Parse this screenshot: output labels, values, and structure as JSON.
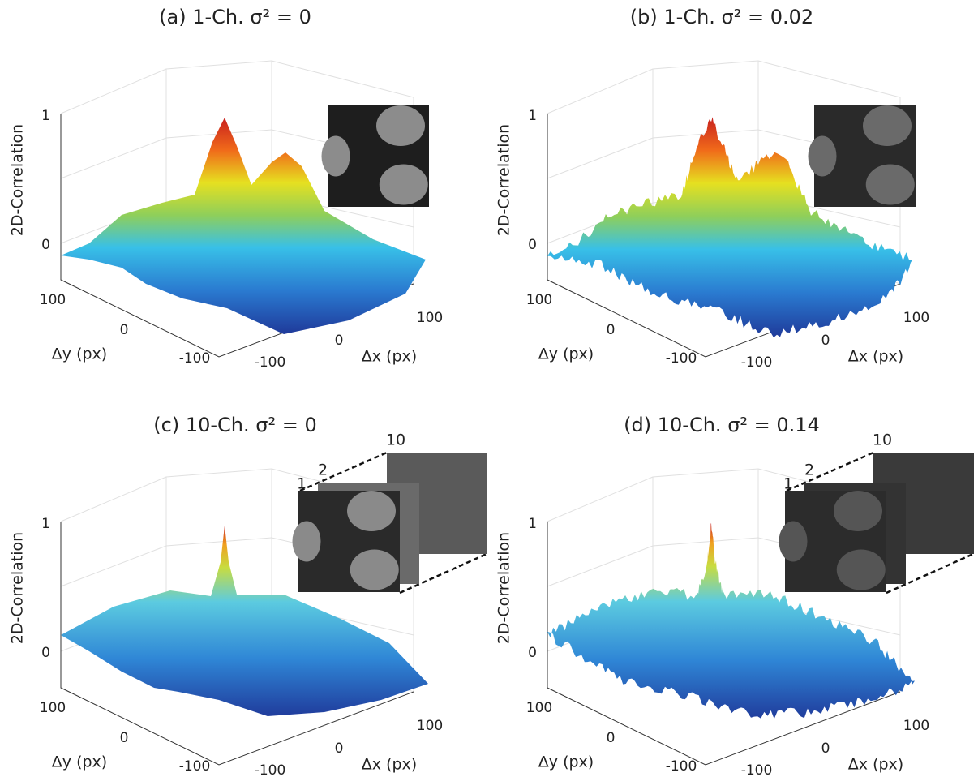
{
  "panels": [
    {
      "title": "(a) 1-Ch. σ² = 0",
      "z_label": "2D-Correlation",
      "y_label": "Δy (px)",
      "x_label": "Δx (px)",
      "zticks": [
        0,
        1
      ],
      "yticks": [
        100,
        0,
        -100
      ],
      "xticks": [
        -100,
        0,
        100
      ]
    },
    {
      "title": "(b) 1-Ch. σ² = 0.02",
      "z_label": "2D-Correlation",
      "y_label": "Δy (px)",
      "x_label": "Δx (px)",
      "zticks": [
        0,
        1
      ],
      "yticks": [
        100,
        0,
        -100
      ],
      "xticks": [
        -100,
        0,
        100
      ]
    },
    {
      "title": "(c) 10-Ch. σ² = 0",
      "z_label": "2D-Correlation",
      "y_label": "Δy (px)",
      "x_label": "Δx (px)",
      "zticks": [
        0,
        1
      ],
      "yticks": [
        100,
        0,
        -100
      ],
      "xticks": [
        -100,
        0,
        100
      ],
      "inset_labels": [
        "1",
        "2",
        "10"
      ]
    },
    {
      "title": "(d) 10-Ch. σ² = 0.14",
      "z_label": "2D-Correlation",
      "y_label": "Δy (px)",
      "x_label": "Δx (px)",
      "zticks": [
        0,
        1
      ],
      "yticks": [
        100,
        0,
        -100
      ],
      "xticks": [
        -100,
        0,
        100
      ],
      "inset_labels": [
        "1",
        "2",
        "10"
      ]
    }
  ]
}
